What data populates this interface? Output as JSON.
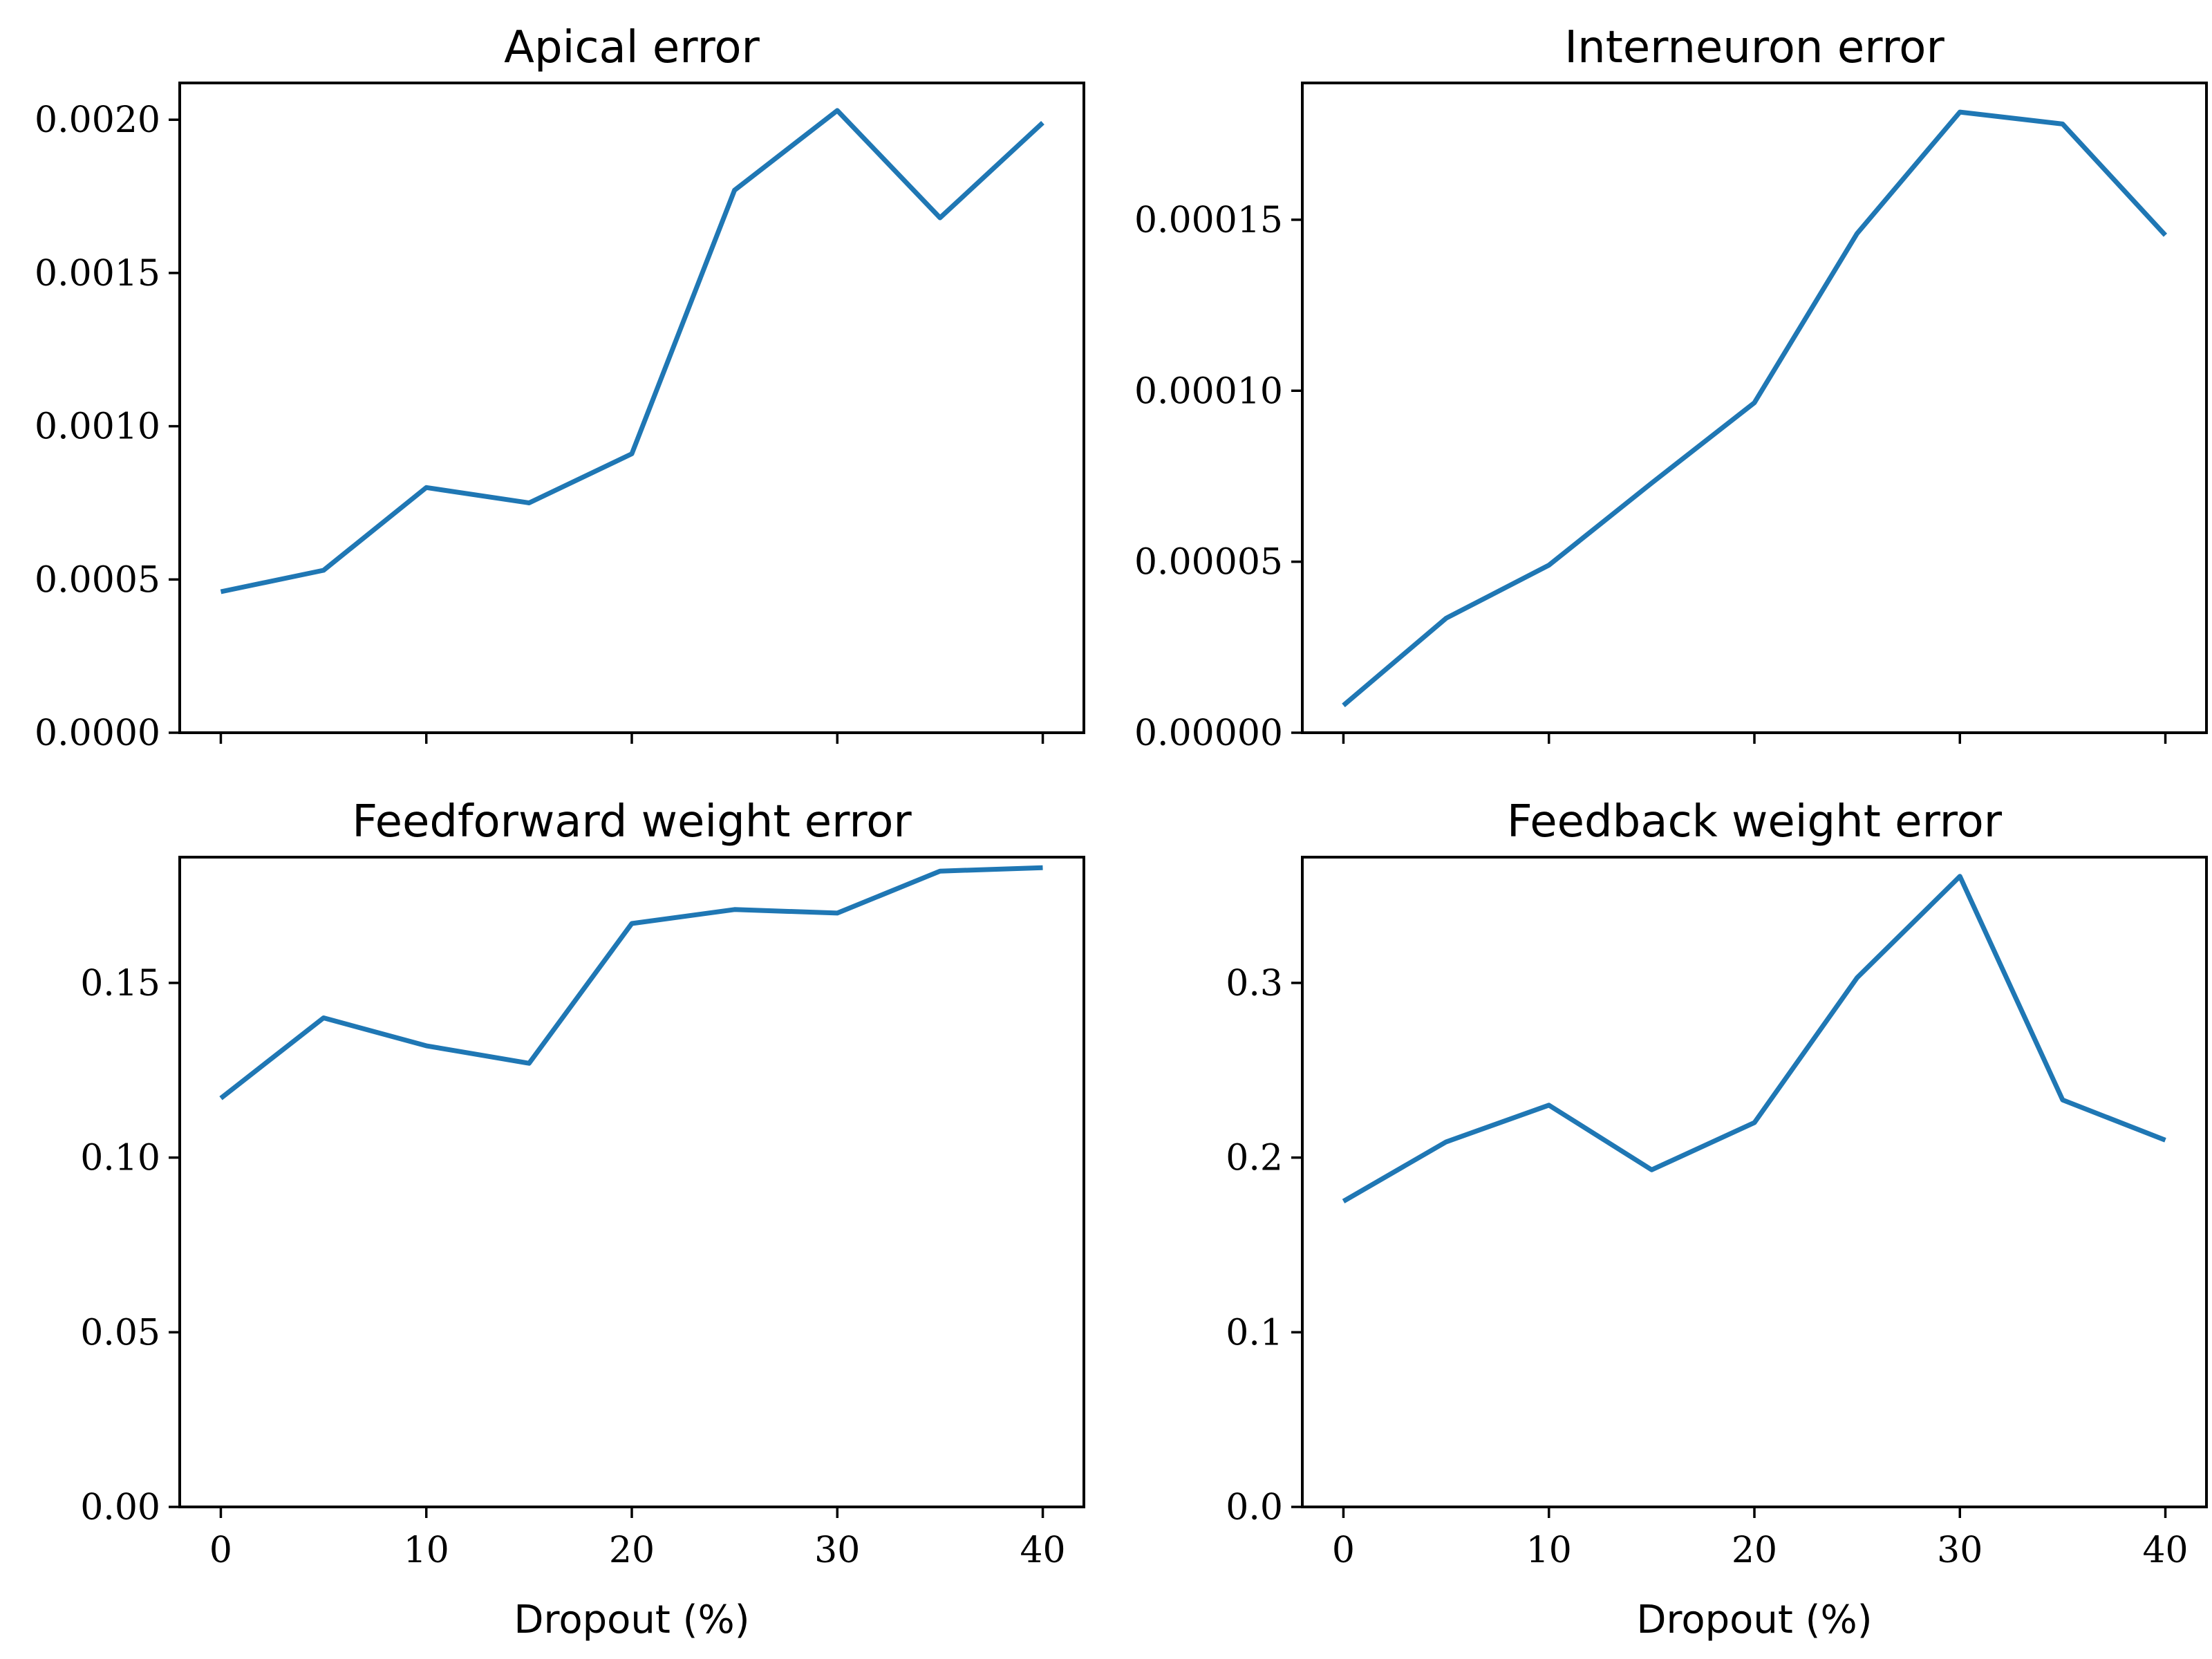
{
  "style": {
    "line_color": "#1f77b4",
    "frame_color": "#000000",
    "background": "#ffffff"
  },
  "chart_data": [
    {
      "type": "line",
      "title": "Apical error",
      "xlabel": "",
      "ylabel": "",
      "x": [
        0,
        5,
        10,
        15,
        20,
        25,
        30,
        35,
        40
      ],
      "series": [
        {
          "values": [
            0.00046,
            0.00053,
            0.0008,
            0.00075,
            0.00091,
            0.00177,
            0.00203,
            0.00168,
            0.00199
          ]
        }
      ],
      "xlim": [
        -2,
        42
      ],
      "ylim": [
        0,
        0.00212
      ],
      "xticks": [
        0,
        10,
        20,
        30,
        40
      ],
      "xtick_labels": [
        "",
        "",
        "",
        "",
        ""
      ],
      "yticks": [
        0,
        0.0005,
        0.001,
        0.0015,
        0.002
      ],
      "ytick_labels": [
        "0.0000",
        "0.0005",
        "0.0010",
        "0.0015",
        "0.0020"
      ],
      "grid": false
    },
    {
      "type": "line",
      "title": "Interneuron error",
      "xlabel": "",
      "ylabel": "",
      "x": [
        0,
        5,
        10,
        15,
        20,
        25,
        30,
        35,
        40
      ],
      "series": [
        {
          "values": [
            8e-06,
            3.35e-05,
            4.9e-05,
            7.3e-05,
            9.65e-05,
            0.000146,
            0.0001815,
            0.000178,
            0.0001455
          ]
        }
      ],
      "xlim": [
        -2,
        42
      ],
      "ylim": [
        0,
        0.00019
      ],
      "xticks": [
        0,
        10,
        20,
        30,
        40
      ],
      "xtick_labels": [
        "",
        "",
        "",
        "",
        ""
      ],
      "yticks": [
        0,
        5e-05,
        0.0001,
        0.00015
      ],
      "ytick_labels": [
        "0.00000",
        "0.00005",
        "0.00010",
        "0.00015"
      ],
      "grid": false
    },
    {
      "type": "line",
      "title": "Feedforward weight error",
      "xlabel": "Dropout (%)",
      "ylabel": "",
      "x": [
        0,
        5,
        10,
        15,
        20,
        25,
        30,
        35,
        40
      ],
      "series": [
        {
          "values": [
            0.117,
            0.14,
            0.132,
            0.127,
            0.167,
            0.171,
            0.17,
            0.182,
            0.183
          ]
        }
      ],
      "xlim": [
        -2,
        42
      ],
      "ylim": [
        0,
        0.186
      ],
      "xticks": [
        0,
        10,
        20,
        30,
        40
      ],
      "xtick_labels": [
        "0",
        "10",
        "20",
        "30",
        "40"
      ],
      "yticks": [
        0,
        0.05,
        0.1,
        0.15
      ],
      "ytick_labels": [
        "0.00",
        "0.05",
        "0.10",
        "0.15"
      ],
      "grid": false
    },
    {
      "type": "line",
      "title": "Feedback weight error",
      "xlabel": "Dropout (%)",
      "ylabel": "",
      "x": [
        0,
        5,
        10,
        15,
        20,
        25,
        30,
        35,
        40
      ],
      "series": [
        {
          "values": [
            0.175,
            0.209,
            0.23,
            0.193,
            0.22,
            0.303,
            0.361,
            0.233,
            0.21
          ]
        }
      ],
      "xlim": [
        -2,
        42
      ],
      "ylim": [
        0,
        0.372
      ],
      "xticks": [
        0,
        10,
        20,
        30,
        40
      ],
      "xtick_labels": [
        "0",
        "10",
        "20",
        "30",
        "40"
      ],
      "yticks": [
        0,
        0.1,
        0.2,
        0.3
      ],
      "ytick_labels": [
        "0.0",
        "0.1",
        "0.2",
        "0.3"
      ],
      "grid": false
    }
  ]
}
